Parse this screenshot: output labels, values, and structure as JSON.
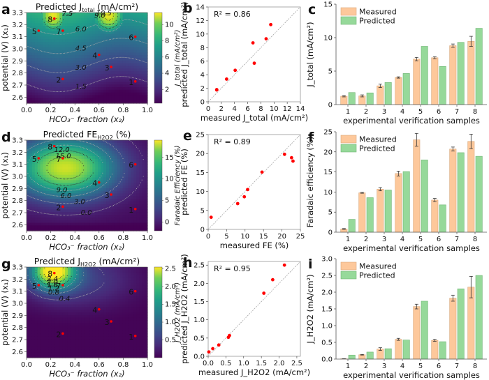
{
  "figure": {
    "panel_labels": [
      "a",
      "b",
      "c",
      "d",
      "e",
      "f",
      "g",
      "h",
      "i"
    ]
  },
  "colors": {
    "measured": "#fdc89b",
    "predicted": "#96d99a",
    "points": "#ff0000",
    "identity_line": "#999999"
  },
  "chart_data": [
    {
      "panel": "a",
      "type": "heatmap",
      "title": "Predicted J_total (mA/cm²)",
      "title_main": "Predicted J",
      "title_sub": "total",
      "title_unit": " (mA/cm²)",
      "xlabel": "HCO₃⁻ fraction (x₂)",
      "ylabel": "potential (V) (x₁)",
      "xlim": [
        0.0,
        1.0
      ],
      "ylim": [
        2.55,
        3.3
      ],
      "xticks": [
        "0.0",
        "0.2",
        "0.4",
        "0.6",
        "0.8",
        "1.0"
      ],
      "yticks": [
        "2.6",
        "2.7",
        "2.8",
        "2.9",
        "3.0",
        "3.1",
        "3.2",
        "3.3"
      ],
      "colorbar": {
        "label": "J_total (mA/cm²)",
        "ticks": [
          "2",
          "4",
          "6",
          "8",
          "10"
        ],
        "range": [
          0.3,
          11.5
        ]
      },
      "contour_levels": [
        "1.5",
        "3.0",
        "4.5",
        "6.0",
        "7.5",
        "9.0",
        "10.5"
      ],
      "points": [
        {
          "label": "1",
          "x": 0.9,
          "y": 2.73
        },
        {
          "label": "2",
          "x": 0.3,
          "y": 2.75
        },
        {
          "label": "3",
          "x": 0.7,
          "y": 2.85
        },
        {
          "label": "4",
          "x": 0.6,
          "y": 2.95
        },
        {
          "label": "5",
          "x": 0.1,
          "y": 3.15
        },
        {
          "label": "6",
          "x": 0.9,
          "y": 3.1
        },
        {
          "label": "7",
          "x": 0.3,
          "y": 3.15
        },
        {
          "label": "8",
          "x": 0.23,
          "y": 3.25
        }
      ]
    },
    {
      "panel": "b",
      "type": "scatter",
      "annotation": "R² = 0.86",
      "xlabel": "measured J_total (mA/cm²)",
      "ylabel": "predicted J_total (mA/cm²)",
      "xlim": [
        0,
        14
      ],
      "ylim": [
        0,
        14
      ],
      "xticks": [
        "0",
        "2",
        "4",
        "6",
        "8",
        "10",
        "12",
        "14"
      ],
      "yticks": [
        "0",
        "2",
        "4",
        "6",
        "8",
        "10",
        "12",
        "14"
      ],
      "x": [
        1.3,
        1.3,
        2.8,
        4.1,
        6.8,
        7.0,
        8.8,
        9.5
      ],
      "y": [
        1.8,
        1.75,
        3.35,
        4.65,
        8.7,
        5.7,
        9.3,
        11.4
      ]
    },
    {
      "panel": "c",
      "type": "bar",
      "xlabel": "experimental verification samples",
      "ylabel": "J_total (mA/cm²)",
      "ylim": [
        0,
        15
      ],
      "yticks": [
        "0",
        "5",
        "10",
        "15"
      ],
      "categories": [
        "1",
        "2",
        "3",
        "4",
        "5",
        "6",
        "7",
        "8"
      ],
      "series": [
        {
          "name": "Measured",
          "values": [
            1.25,
            1.3,
            2.8,
            4.05,
            6.8,
            7.0,
            8.8,
            9.45
          ],
          "errors": [
            0.1,
            0.15,
            0.25,
            0.1,
            0.25,
            0.15,
            0.25,
            0.75
          ]
        },
        {
          "name": "Predicted",
          "values": [
            1.8,
            1.75,
            3.3,
            4.65,
            8.7,
            5.7,
            9.3,
            11.4
          ]
        }
      ]
    },
    {
      "panel": "d",
      "type": "heatmap",
      "title": "Predicted FE_H2O2 (%)",
      "title_main": "Predicted FE",
      "title_sub": "H2O2",
      "title_unit": " (%)",
      "xlabel": "HCO₃⁻ fraction (x₂)",
      "ylabel": "potential (V) (x₁)",
      "xlim": [
        0.0,
        1.0
      ],
      "ylim": [
        2.55,
        3.3
      ],
      "xticks": [
        "0.0",
        "0.2",
        "0.4",
        "0.6",
        "0.8",
        "1.0"
      ],
      "yticks": [
        "2.6",
        "2.7",
        "2.8",
        "2.9",
        "3.0",
        "3.1",
        "3.2",
        "3.3"
      ],
      "colorbar": {
        "label": "Faradaic Efficiency (%)",
        "ticks": [
          "0",
          "5",
          "10",
          "15"
        ],
        "range": [
          -2,
          19
        ]
      },
      "contour_levels": [
        "0.0",
        "3.0",
        "6.0",
        "9.0",
        "12.0",
        "15.0",
        "18.0"
      ],
      "points": [
        {
          "label": "1",
          "x": 0.9,
          "y": 2.73
        },
        {
          "label": "2",
          "x": 0.3,
          "y": 2.75
        },
        {
          "label": "3",
          "x": 0.7,
          "y": 2.85
        },
        {
          "label": "4",
          "x": 0.6,
          "y": 2.95
        },
        {
          "label": "5",
          "x": 0.1,
          "y": 3.15
        },
        {
          "label": "6",
          "x": 0.9,
          "y": 3.1
        },
        {
          "label": "7",
          "x": 0.3,
          "y": 3.15
        },
        {
          "label": "8",
          "x": 0.23,
          "y": 3.25
        }
      ]
    },
    {
      "panel": "e",
      "type": "scatter",
      "annotation": "R² = 0.89",
      "xlabel": "measured FE (%)",
      "ylabel": "predicted FE (%)",
      "xlim": [
        0,
        25
      ],
      "ylim": [
        0,
        25
      ],
      "xticks": [
        "0",
        "5",
        "10",
        "15",
        "20",
        "25"
      ],
      "yticks": [
        "0",
        "5",
        "10",
        "15",
        "20",
        "25"
      ],
      "x": [
        0.8,
        8.0,
        9.8,
        10.7,
        14.6,
        20.7,
        22.6,
        23.0
      ],
      "y": [
        3.2,
        6.8,
        8.6,
        10.5,
        15.1,
        19.8,
        18.9,
        18.0
      ]
    },
    {
      "panel": "f",
      "type": "bar",
      "xlabel": "experimental verification samples",
      "ylabel": "Faradaic efficiency (%)",
      "ylim": [
        0,
        25
      ],
      "yticks": [
        "0",
        "5",
        "10",
        "15",
        "20",
        "25"
      ],
      "categories": [
        "1",
        "2",
        "3",
        "4",
        "5",
        "6",
        "7",
        "8"
      ],
      "series": [
        {
          "name": "Measured",
          "values": [
            0.8,
            9.8,
            10.7,
            14.6,
            23.0,
            8.0,
            20.7,
            22.6
          ],
          "errors": [
            0.1,
            0.1,
            0.4,
            0.6,
            1.6,
            0.4,
            0.5,
            1.8
          ]
        },
        {
          "name": "Predicted",
          "values": [
            3.2,
            8.6,
            10.5,
            15.1,
            18.0,
            6.8,
            19.8,
            18.9
          ]
        }
      ]
    },
    {
      "panel": "g",
      "type": "heatmap",
      "title": "Predicted J_H2O2 (mA/cm²)",
      "title_main": "Predicted J",
      "title_sub": "H2O2",
      "title_unit": " (mA/cm²)",
      "xlabel": "HCO₃⁻ fraction (x₂)",
      "ylabel": "potential (V) (x₁)",
      "xlim": [
        0.0,
        1.0
      ],
      "ylim": [
        2.55,
        3.3
      ],
      "xticks": [
        "0.0",
        "0.2",
        "0.4",
        "0.6",
        "0.8",
        "1.0"
      ],
      "yticks": [
        "2.6",
        "2.7",
        "2.8",
        "2.9",
        "3.0",
        "3.1",
        "3.2",
        "3.3"
      ],
      "colorbar": {
        "label": "J_H2O2 (mA/cm²)",
        "ticks": [
          "0.5",
          "1.0",
          "1.5",
          "2.0",
          "2.5"
        ],
        "range": [
          0.0,
          2.55
        ]
      },
      "contour_levels": [
        "0.4",
        "0.8",
        "1.2",
        "1.6",
        "2.0",
        "2.4"
      ],
      "points": [
        {
          "label": "1",
          "x": 0.9,
          "y": 2.73
        },
        {
          "label": "2",
          "x": 0.3,
          "y": 2.75
        },
        {
          "label": "3",
          "x": 0.7,
          "y": 2.85
        },
        {
          "label": "4",
          "x": 0.6,
          "y": 2.95
        },
        {
          "label": "5",
          "x": 0.1,
          "y": 3.15
        },
        {
          "label": "6",
          "x": 0.9,
          "y": 3.1
        },
        {
          "label": "7",
          "x": 0.3,
          "y": 3.15
        },
        {
          "label": "8",
          "x": 0.23,
          "y": 3.25
        }
      ]
    },
    {
      "panel": "h",
      "type": "scatter",
      "annotation": "R² = 0.95",
      "xlabel": "measured J_H2O2 (mA/cm²)",
      "ylabel": "predicted J_H2O2 (mA/cm²)",
      "xlim": [
        0,
        2.6
      ],
      "ylim": [
        0,
        2.6
      ],
      "xticks": [
        "0.0",
        "0.5",
        "1.0",
        "1.5",
        "2.0",
        "2.5"
      ],
      "yticks": [
        "0.0",
        "0.5",
        "1.0",
        "1.5",
        "2.0",
        "2.5"
      ],
      "x": [
        0.02,
        0.13,
        0.3,
        0.57,
        0.6,
        1.57,
        1.82,
        2.15
      ],
      "y": [
        0.12,
        0.21,
        0.31,
        0.52,
        0.57,
        1.73,
        2.1,
        2.5
      ]
    },
    {
      "panel": "i",
      "type": "bar",
      "xlabel": "experimental verification samples",
      "ylabel": "J_H2O2 (mA/cm²)",
      "ylim": [
        0,
        3.0
      ],
      "yticks": [
        "0.0",
        "0.5",
        "1.0",
        "1.5",
        "2.0",
        "2.5",
        "3.0"
      ],
      "categories": [
        "1",
        "2",
        "3",
        "4",
        "5",
        "6",
        "7",
        "8"
      ],
      "series": [
        {
          "name": "Measured",
          "values": [
            0.01,
            0.13,
            0.3,
            0.59,
            1.57,
            0.56,
            1.82,
            2.15
          ],
          "errors": [
            0.0,
            0.01,
            0.04,
            0.03,
            0.07,
            0.03,
            0.09,
            0.32
          ]
        },
        {
          "name": "Predicted",
          "values": [
            0.12,
            0.21,
            0.31,
            0.57,
            1.73,
            0.52,
            2.1,
            2.5
          ]
        }
      ]
    }
  ]
}
